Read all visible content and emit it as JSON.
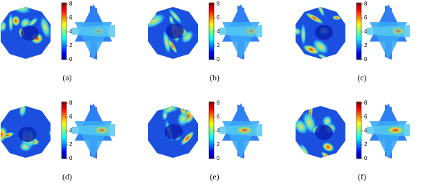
{
  "panels": [
    {
      "label": "(a)"
    },
    {
      "label": "(b)"
    },
    {
      "label": "(c)"
    },
    {
      "label": "(d)"
    },
    {
      "label": "(e)"
    },
    {
      "label": "(f)"
    }
  ],
  "colorbar": {
    "lim": [
      0,
      8
    ],
    "ticks": [
      0,
      2,
      4,
      6,
      8
    ]
  }
}
